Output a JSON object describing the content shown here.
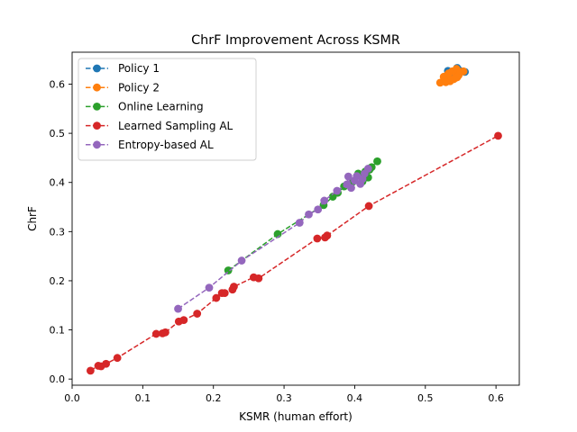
{
  "chart_data": {
    "type": "scatter",
    "title": "ChrF Improvement Across KSMR",
    "xlabel": "KSMR (human effort)",
    "ylabel": "ChrF",
    "xlim": [
      0.0,
      0.633
    ],
    "ylim": [
      -0.0125,
      0.665
    ],
    "xticks": [
      0.0,
      0.1,
      0.2,
      0.3,
      0.4,
      0.5,
      0.6
    ],
    "xtick_labels": [
      "0.0",
      "0.1",
      "0.2",
      "0.3",
      "0.4",
      "0.5",
      "0.6"
    ],
    "yticks": [
      0.0,
      0.1,
      0.2,
      0.3,
      0.4,
      0.5,
      0.6
    ],
    "ytick_labels": [
      "0.0",
      "0.1",
      "0.2",
      "0.3",
      "0.4",
      "0.5",
      "0.6"
    ],
    "grid": false,
    "legend_position": "top-left",
    "series": [
      {
        "name": "Policy 1",
        "color": "#1f77b4",
        "connected": false,
        "points": [
          [
            0.545,
            0.633
          ],
          [
            0.556,
            0.625
          ],
          [
            0.532,
            0.627
          ],
          [
            0.541,
            0.621
          ],
          [
            0.548,
            0.628
          ]
        ]
      },
      {
        "name": "Policy 2",
        "color": "#ff7f0e",
        "connected": false,
        "points": [
          [
            0.521,
            0.603
          ],
          [
            0.527,
            0.609
          ],
          [
            0.531,
            0.618
          ],
          [
            0.535,
            0.606
          ],
          [
            0.538,
            0.626
          ],
          [
            0.542,
            0.612
          ],
          [
            0.544,
            0.631
          ],
          [
            0.547,
            0.618
          ],
          [
            0.55,
            0.625
          ],
          [
            0.554,
            0.626
          ],
          [
            0.526,
            0.615
          ],
          [
            0.533,
            0.622
          ],
          [
            0.54,
            0.61
          ],
          [
            0.545,
            0.614
          ],
          [
            0.529,
            0.604
          ]
        ]
      },
      {
        "name": "Online Learning",
        "color": "#2ca02c",
        "connected": true,
        "points": [
          [
            0.221,
            0.221
          ],
          [
            0.291,
            0.295
          ],
          [
            0.356,
            0.354
          ],
          [
            0.369,
            0.371
          ],
          [
            0.376,
            0.379
          ],
          [
            0.385,
            0.392
          ],
          [
            0.397,
            0.401
          ],
          [
            0.405,
            0.418
          ],
          [
            0.411,
            0.402
          ],
          [
            0.415,
            0.422
          ],
          [
            0.419,
            0.41
          ],
          [
            0.421,
            0.426
          ],
          [
            0.424,
            0.431
          ],
          [
            0.432,
            0.443
          ]
        ]
      },
      {
        "name": "Learned Sampling AL",
        "color": "#d62728",
        "connected": true,
        "points": [
          [
            0.026,
            0.017
          ],
          [
            0.037,
            0.027
          ],
          [
            0.041,
            0.026
          ],
          [
            0.048,
            0.031
          ],
          [
            0.064,
            0.043
          ],
          [
            0.119,
            0.092
          ],
          [
            0.128,
            0.093
          ],
          [
            0.132,
            0.095
          ],
          [
            0.151,
            0.117
          ],
          [
            0.158,
            0.12
          ],
          [
            0.177,
            0.133
          ],
          [
            0.204,
            0.165
          ],
          [
            0.212,
            0.175
          ],
          [
            0.216,
            0.175
          ],
          [
            0.227,
            0.182
          ],
          [
            0.229,
            0.188
          ],
          [
            0.257,
            0.207
          ],
          [
            0.264,
            0.205
          ],
          [
            0.347,
            0.286
          ],
          [
            0.358,
            0.288
          ],
          [
            0.361,
            0.292
          ],
          [
            0.42,
            0.352
          ],
          [
            0.603,
            0.495
          ]
        ]
      },
      {
        "name": "Entropy-based AL",
        "color": "#9467bd",
        "connected": true,
        "points": [
          [
            0.15,
            0.143
          ],
          [
            0.194,
            0.186
          ],
          [
            0.24,
            0.241
          ],
          [
            0.322,
            0.318
          ],
          [
            0.335,
            0.335
          ],
          [
            0.348,
            0.345
          ],
          [
            0.357,
            0.363
          ],
          [
            0.375,
            0.383
          ],
          [
            0.389,
            0.396
          ],
          [
            0.391,
            0.412
          ],
          [
            0.395,
            0.389
          ],
          [
            0.4,
            0.404
          ],
          [
            0.403,
            0.413
          ],
          [
            0.408,
            0.397
          ],
          [
            0.411,
            0.407
          ],
          [
            0.414,
            0.418
          ],
          [
            0.419,
            0.428
          ]
        ]
      }
    ]
  }
}
